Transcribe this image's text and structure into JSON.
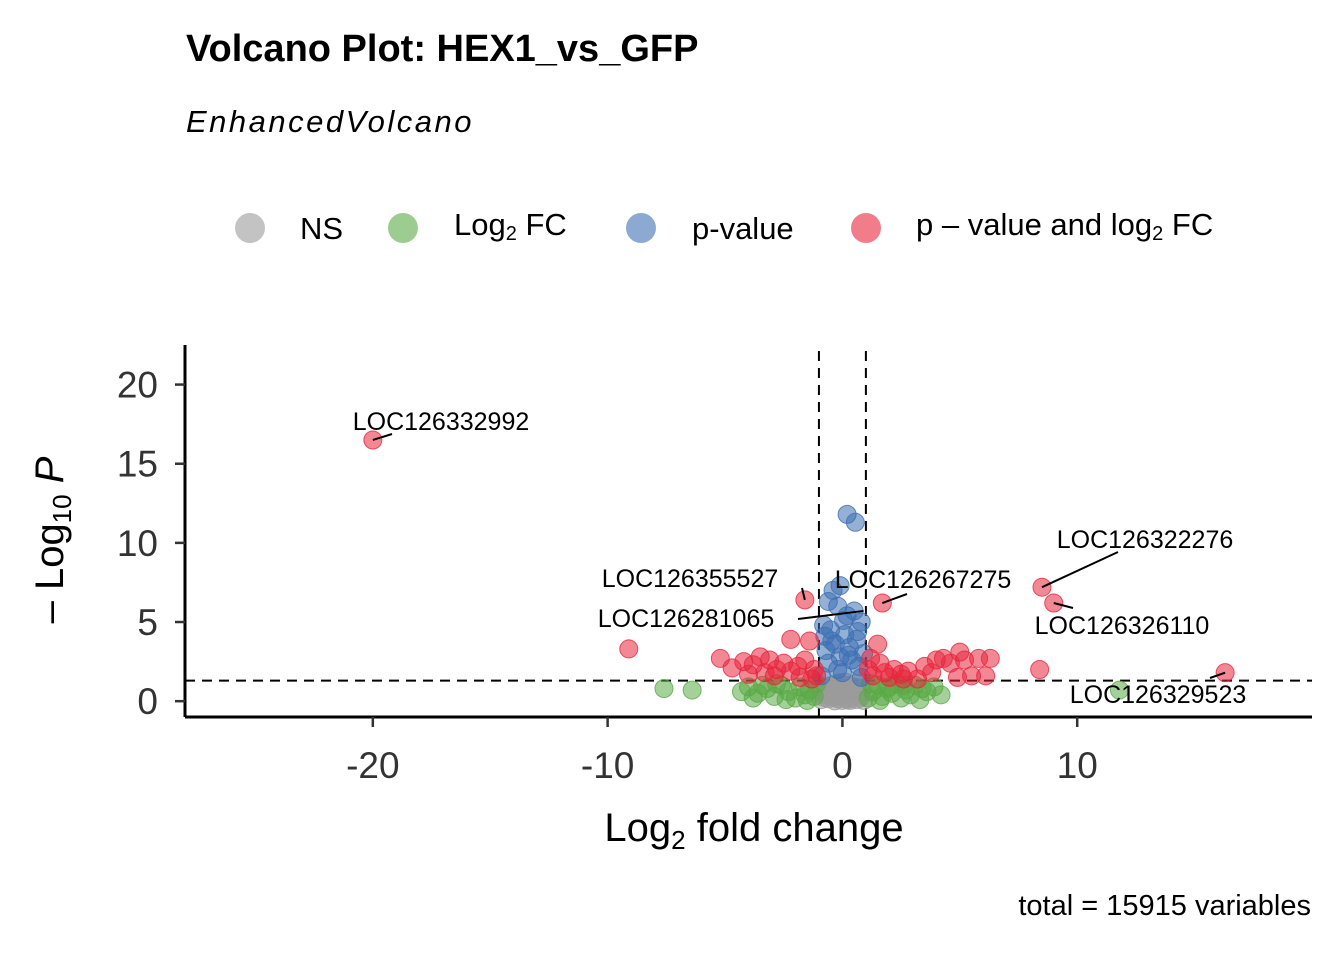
{
  "chart_data": {
    "type": "scatter",
    "title": "Volcano Plot: HEX1_vs_GFP",
    "subtitle": "EnhancedVolcano",
    "xlabel": "Log2 fold change",
    "ylabel": "-Log10 P",
    "caption": "total = 15915 variables",
    "xlim": [
      -28,
      20
    ],
    "ylim": [
      -1,
      22.5
    ],
    "xticks": [
      -20,
      -10,
      0,
      10
    ],
    "yticks": [
      0,
      5,
      10,
      15,
      20
    ],
    "thresholds": {
      "log2fc": [
        -1,
        1
      ],
      "neg_log10_p": 1.3
    },
    "grid": false,
    "legend_position": "top",
    "colors": {
      "NS": "#9b9b9b",
      "Log2 FC": "#5aaa46",
      "p-value": "#3d6fb2",
      "p-value and log2 FC": "#e8263d"
    },
    "legend": [
      {
        "key": "NS",
        "label": "NS",
        "sub": "",
        "suffix": ""
      },
      {
        "key": "Log2 FC",
        "label": "Log",
        "sub": "2",
        "suffix": " FC"
      },
      {
        "key": "p-value",
        "label": "p-value",
        "sub": "",
        "suffix": ""
      },
      {
        "key": "p-value and log2 FC",
        "label": "p – value and log",
        "sub": "2",
        "suffix": " FC"
      }
    ],
    "series": [
      {
        "name": "NS",
        "points": [
          [
            0,
            0.05
          ],
          [
            0.1,
            0.2
          ],
          [
            -0.1,
            0.3
          ],
          [
            0.2,
            0.1
          ],
          [
            -0.2,
            0.15
          ],
          [
            0.3,
            0.4
          ],
          [
            -0.3,
            0.35
          ],
          [
            0.4,
            0.2
          ],
          [
            -0.4,
            0.25
          ],
          [
            0.5,
            0.5
          ],
          [
            -0.5,
            0.45
          ],
          [
            0.6,
            0.1
          ],
          [
            -0.6,
            0.15
          ],
          [
            0.7,
            0.6
          ],
          [
            -0.7,
            0.55
          ],
          [
            0.8,
            0.3
          ],
          [
            -0.8,
            0.25
          ],
          [
            0.9,
            0.05
          ],
          [
            -0.9,
            0.1
          ],
          [
            0.15,
            0.8
          ],
          [
            -0.15,
            0.9
          ],
          [
            0.25,
            1.0
          ],
          [
            -0.25,
            1.1
          ],
          [
            0.35,
            0.7
          ],
          [
            -0.35,
            0.75
          ],
          [
            0.45,
            0.9
          ],
          [
            -0.45,
            1.0
          ],
          [
            0.55,
            1.1
          ],
          [
            -0.55,
            0.95
          ],
          [
            0.05,
            0.6
          ],
          [
            -0.05,
            0.5
          ],
          [
            0.65,
            0.85
          ],
          [
            -0.65,
            0.8
          ],
          [
            0.75,
            0.2
          ],
          [
            -0.75,
            0.4
          ],
          [
            0.85,
            0.7
          ],
          [
            -0.85,
            0.65
          ],
          [
            0.12,
            1.2
          ],
          [
            -0.12,
            1.15
          ],
          [
            0.32,
            0.05
          ],
          [
            -0.32,
            0.02
          ]
        ]
      },
      {
        "name": "Log2 FC",
        "points": [
          [
            -7.6,
            0.8
          ],
          [
            -6.4,
            0.7
          ],
          [
            -4.3,
            0.6
          ],
          [
            -4.0,
            0.9
          ],
          [
            -3.6,
            0.5
          ],
          [
            -3.2,
            0.8
          ],
          [
            -2.9,
            0.3
          ],
          [
            -2.6,
            1.0
          ],
          [
            -2.3,
            0.6
          ],
          [
            -2.0,
            0.2
          ],
          [
            -1.8,
            0.9
          ],
          [
            -1.6,
            0.4
          ],
          [
            -1.4,
            0.7
          ],
          [
            -1.2,
            0.3
          ],
          [
            -1.1,
            1.1
          ],
          [
            -3.8,
            0.2
          ],
          [
            -2.4,
            0.1
          ],
          [
            -1.5,
            0.05
          ],
          [
            -2.8,
            1.1
          ],
          [
            -3.4,
            1.0
          ],
          [
            1.1,
            0.2
          ],
          [
            1.3,
            0.6
          ],
          [
            1.5,
            1.0
          ],
          [
            1.7,
            0.3
          ],
          [
            1.9,
            0.8
          ],
          [
            2.1,
            0.5
          ],
          [
            2.3,
            1.1
          ],
          [
            2.5,
            0.2
          ],
          [
            2.7,
            0.7
          ],
          [
            2.9,
            0.4
          ],
          [
            3.1,
            1.0
          ],
          [
            3.3,
            0.1
          ],
          [
            3.6,
            0.6
          ],
          [
            3.9,
            0.9
          ],
          [
            4.2,
            0.4
          ],
          [
            1.2,
            1.1
          ],
          [
            1.6,
            0.05
          ],
          [
            2.0,
            0.9
          ],
          [
            2.6,
            1.0
          ],
          [
            3.4,
            0.8
          ],
          [
            11.8,
            0.7
          ]
        ]
      },
      {
        "name": "p-value",
        "points": [
          [
            0.2,
            11.8
          ],
          [
            0.55,
            11.3
          ],
          [
            -0.4,
            7.0
          ],
          [
            -0.1,
            7.3
          ],
          [
            -0.6,
            6.3
          ],
          [
            -0.2,
            6.0
          ],
          [
            0.5,
            5.7
          ],
          [
            0.2,
            5.4
          ],
          [
            0.8,
            5.0
          ],
          [
            -0.8,
            4.8
          ],
          [
            -0.5,
            4.5
          ],
          [
            0.1,
            4.2
          ],
          [
            0.6,
            3.9
          ],
          [
            -0.3,
            3.6
          ],
          [
            0.3,
            3.4
          ],
          [
            -0.7,
            3.2
          ],
          [
            0.9,
            3.0
          ],
          [
            -0.1,
            2.8
          ],
          [
            0.4,
            2.6
          ],
          [
            -0.6,
            2.4
          ],
          [
            0.7,
            2.2
          ],
          [
            -0.2,
            2.0
          ],
          [
            0.0,
            1.8
          ],
          [
            -0.9,
            1.6
          ],
          [
            0.8,
            1.5
          ],
          [
            0.25,
            2.9
          ],
          [
            -0.45,
            3.8
          ],
          [
            0.05,
            5.1
          ],
          [
            -0.75,
            4.1
          ],
          [
            0.65,
            4.4
          ]
        ]
      },
      {
        "name": "p-value and log2 FC",
        "points": [
          [
            -20.0,
            16.5
          ],
          [
            8.5,
            7.2
          ],
          [
            9.0,
            6.2
          ],
          [
            1.7,
            6.2
          ],
          [
            -1.6,
            6.4
          ],
          [
            -2.2,
            3.9
          ],
          [
            -9.1,
            3.3
          ],
          [
            -5.2,
            2.7
          ],
          [
            -4.7,
            2.1
          ],
          [
            -4.2,
            2.5
          ],
          [
            -3.8,
            2.3
          ],
          [
            -3.5,
            2.8
          ],
          [
            -3.1,
            2.6
          ],
          [
            -2.8,
            2.0
          ],
          [
            -2.5,
            2.4
          ],
          [
            -2.2,
            1.9
          ],
          [
            -1.9,
            2.2
          ],
          [
            -1.6,
            2.6
          ],
          [
            -1.4,
            3.8
          ],
          [
            -1.2,
            2.0
          ],
          [
            -4.0,
            1.7
          ],
          [
            -3.3,
            1.8
          ],
          [
            -2.9,
            1.6
          ],
          [
            -1.8,
            1.5
          ],
          [
            -1.1,
            1.6
          ],
          [
            1.1,
            2.0
          ],
          [
            1.3,
            1.6
          ],
          [
            1.6,
            2.4
          ],
          [
            1.8,
            1.8
          ],
          [
            2.0,
            1.5
          ],
          [
            2.2,
            2.0
          ],
          [
            2.5,
            1.7
          ],
          [
            2.8,
            1.9
          ],
          [
            3.2,
            1.4
          ],
          [
            3.5,
            2.2
          ],
          [
            3.8,
            1.8
          ],
          [
            4.0,
            2.6
          ],
          [
            4.3,
            2.7
          ],
          [
            4.6,
            2.4
          ],
          [
            4.9,
            1.5
          ],
          [
            5.2,
            2.6
          ],
          [
            5.5,
            1.6
          ],
          [
            5.8,
            2.7
          ],
          [
            6.1,
            1.6
          ],
          [
            6.3,
            2.7
          ],
          [
            5.0,
            3.1
          ],
          [
            8.4,
            2.0
          ],
          [
            16.3,
            1.8
          ],
          [
            1.2,
            2.7
          ],
          [
            2.6,
            1.4
          ],
          [
            -1.3,
            1.4
          ],
          [
            1.5,
            3.6
          ]
        ]
      }
    ],
    "annotations": [
      {
        "text": "LOC126332992",
        "x": -20.0,
        "y": 16.5
      },
      {
        "text": "LOC126322276",
        "x": 8.5,
        "y": 7.2
      },
      {
        "text": "LOC126267275",
        "x": 1.7,
        "y": 6.2
      },
      {
        "text": "LOC126355527",
        "x": -1.6,
        "y": 6.4
      },
      {
        "text": "LOC126281065",
        "x": 0.9,
        "y": 5.7
      },
      {
        "text": "LOC126326110",
        "x": 9.0,
        "y": 6.2
      },
      {
        "text": "LOC126329523",
        "x": 16.3,
        "y": 1.8
      }
    ]
  }
}
